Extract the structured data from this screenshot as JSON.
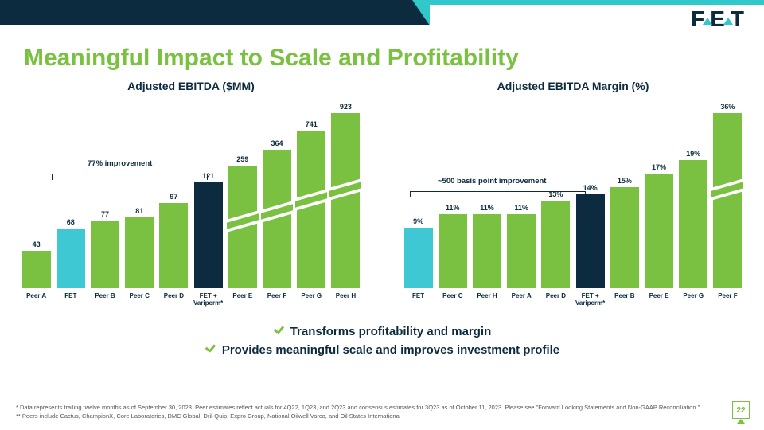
{
  "colors": {
    "green": "#7ac142",
    "cyan": "#3ec8d4",
    "navy": "#0c2b3e"
  },
  "title": "Meaningful Impact to Scale and Profitability",
  "logo": "FET",
  "page_number": "22",
  "chart1": {
    "title": "Adjusted EBITDA ($MM)",
    "annotation": "77% improvement",
    "ymax_display": 200,
    "bars": [
      {
        "label": "Peer A",
        "value": 43,
        "display": 43,
        "color": "#7ac142",
        "break": false
      },
      {
        "label": "FET",
        "value": 68,
        "display": 68,
        "color": "#3ec8d4",
        "break": false
      },
      {
        "label": "Peer B",
        "value": 77,
        "display": 77,
        "color": "#7ac142",
        "break": false
      },
      {
        "label": "Peer C",
        "value": 81,
        "display": 81,
        "color": "#7ac142",
        "break": false
      },
      {
        "label": "Peer D",
        "value": 97,
        "display": 97,
        "color": "#7ac142",
        "break": false
      },
      {
        "label": "FET + Variperm*",
        "value": 121,
        "display": 121,
        "color": "#0c2b3e",
        "break": false
      },
      {
        "label": "Peer E",
        "value": 259,
        "display": 140,
        "color": "#7ac142",
        "break": true
      },
      {
        "label": "Peer F",
        "value": 364,
        "display": 158,
        "color": "#7ac142",
        "break": true
      },
      {
        "label": "Peer G",
        "value": 741,
        "display": 180,
        "color": "#7ac142",
        "break": true
      },
      {
        "label": "Peer H",
        "value": 923,
        "display": 200,
        "color": "#7ac142",
        "break": true
      }
    ]
  },
  "chart2": {
    "title": "Adjusted EBITDA Margin (%)",
    "annotation": "~500 basis point improvement",
    "ymax_display": 26,
    "bars": [
      {
        "label": "FET",
        "value": "9%",
        "display": 9,
        "color": "#3ec8d4",
        "break": false
      },
      {
        "label": "Peer C",
        "value": "11%",
        "display": 11,
        "color": "#7ac142",
        "break": false
      },
      {
        "label": "Peer H",
        "value": "11%",
        "display": 11,
        "color": "#7ac142",
        "break": false
      },
      {
        "label": "Peer A",
        "value": "11%",
        "display": 11,
        "color": "#7ac142",
        "break": false
      },
      {
        "label": "Peer D",
        "value": "13%",
        "display": 13,
        "color": "#7ac142",
        "break": false
      },
      {
        "label": "FET + Variperm*",
        "value": "14%",
        "display": 14,
        "color": "#0c2b3e",
        "break": false
      },
      {
        "label": "Peer B",
        "value": "15%",
        "display": 15,
        "color": "#7ac142",
        "break": false
      },
      {
        "label": "Peer E",
        "value": "17%",
        "display": 17,
        "color": "#7ac142",
        "break": false
      },
      {
        "label": "Peer G",
        "value": "19%",
        "display": 19,
        "color": "#7ac142",
        "break": false
      },
      {
        "label": "Peer F",
        "value": "36%",
        "display": 26,
        "color": "#7ac142",
        "break": true
      }
    ]
  },
  "bullets": [
    "Transforms profitability and margin",
    "Provides meaningful scale and improves investment profile"
  ],
  "footnotes": [
    "* Data represents trailing twelve months as of September 30, 2023. Peer estimates reflect actuals for 4Q22, 1Q23, and 2Q23 and consensus estimates for 3Q23 as of October 11, 2023. Please see \"Forward Looking Statements and Non-GAAP Reconciliation.\"",
    "** Peers include Cactus, ChampionX, Core Laboratories, DMC Global, Dril-Quip, Expro Group, National Oilwell Varco, and Oil States International"
  ]
}
